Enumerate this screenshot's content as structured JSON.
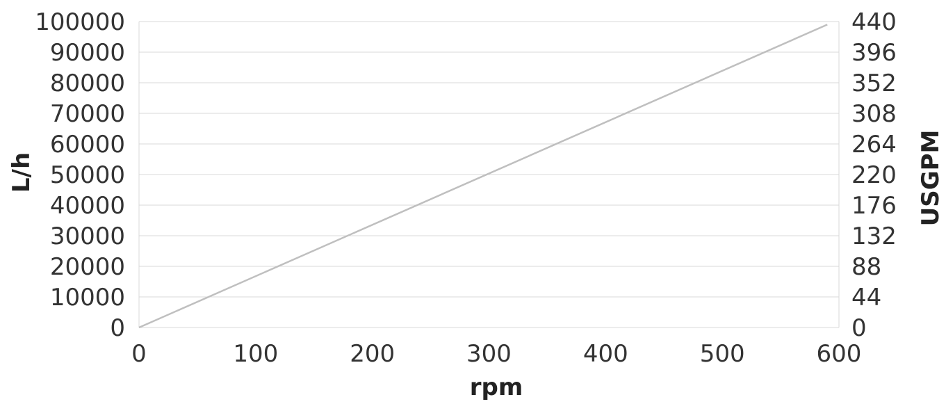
{
  "chart_data": {
    "type": "line",
    "xlabel": "rpm",
    "ylabel_left": "L/h",
    "ylabel_right": "USGPM",
    "x_ticks": [
      "0",
      "100",
      "200",
      "300",
      "400",
      "500",
      "600"
    ],
    "y_left_ticks": [
      "0",
      "10000",
      "20000",
      "30000",
      "40000",
      "50000",
      "60000",
      "70000",
      "80000",
      "90000",
      "100000"
    ],
    "y_right_ticks": [
      "0",
      "44",
      "88",
      "132",
      "176",
      "220",
      "264",
      "308",
      "352",
      "396",
      "440"
    ],
    "xlim": [
      0,
      600
    ],
    "ylim_left": [
      0,
      100000
    ],
    "ylim_right": [
      0,
      440
    ],
    "grid": true,
    "series": [
      {
        "x": [
          0,
          590
        ],
        "y": [
          0,
          99000
        ],
        "color": "#bfbfbf"
      }
    ],
    "colors": {
      "line": "#bfbfbf",
      "grid": "#d9d9d9",
      "text": "#333333"
    }
  }
}
